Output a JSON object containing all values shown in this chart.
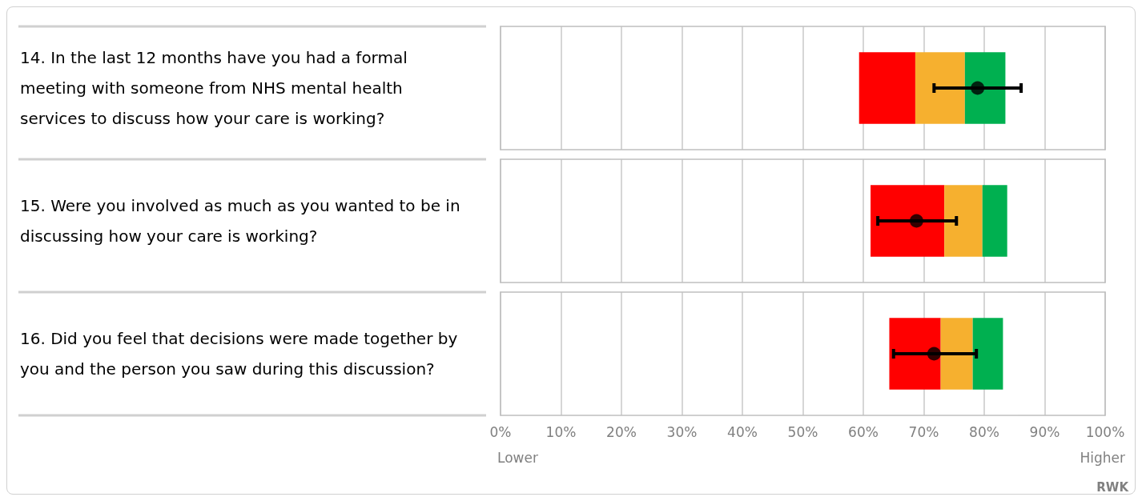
{
  "chart_data": {
    "type": "bar",
    "orientation": "horizontal",
    "categories": [
      "14. In the last 12 months have you had a formal meeting with someone from NHS mental health services to discuss how your care is working?",
      "15. Were you involved as much as you wanted to be in discussing how your care is working?",
      "16. Did you feel that decisions were made together by you and the person you saw during this discussion?"
    ],
    "series": [
      {
        "color": "#ff0000",
        "base": [
          59.3,
          61.2,
          64.3
        ],
        "values": [
          9.3,
          12.2,
          8.5
        ]
      },
      {
        "color": "#f6b02f",
        "base": [
          68.6,
          73.4,
          72.8
        ],
        "values": [
          8.2,
          6.3,
          5.3
        ]
      },
      {
        "color": "#00b050",
        "base": [
          76.8,
          79.7,
          78.1
        ],
        "values": [
          6.7,
          4.1,
          5.0
        ]
      },
      {
        "type": "scatter",
        "color": "#000000",
        "x": [
          "14. In the last 12 months have you had a formal meeting with someone from NHS mental health services to discuss how your care is working?",
          "15. Were you involved as much as you wanted to be in discussing how your care is working?",
          "16. Did you feel that decisions were made together by you and the person you saw during this discussion?"
        ],
        "values": [
          78.9,
          68.8,
          71.7
        ],
        "errors": [
          [
            71.7,
            86.1
          ],
          [
            62.4,
            75.4
          ],
          [
            65.0,
            78.7
          ]
        ],
        "marker": "circle"
      }
    ],
    "xlim": [
      0,
      100
    ],
    "xticks": [
      {
        "value": 0,
        "label": "0%"
      },
      {
        "value": 10,
        "label": "10%"
      },
      {
        "value": 20,
        "label": "20%"
      },
      {
        "value": 30,
        "label": "30%"
      },
      {
        "value": 40,
        "label": "40%"
      },
      {
        "value": 50,
        "label": "50%"
      },
      {
        "value": 60,
        "label": "60%"
      },
      {
        "value": 70,
        "label": "70%"
      },
      {
        "value": 80,
        "label": "80%"
      },
      {
        "value": 90,
        "label": "90%"
      },
      {
        "value": 100,
        "label": "100%"
      }
    ],
    "grid": "x",
    "annotations": [
      "Lower",
      "Higher",
      "RWK"
    ]
  }
}
